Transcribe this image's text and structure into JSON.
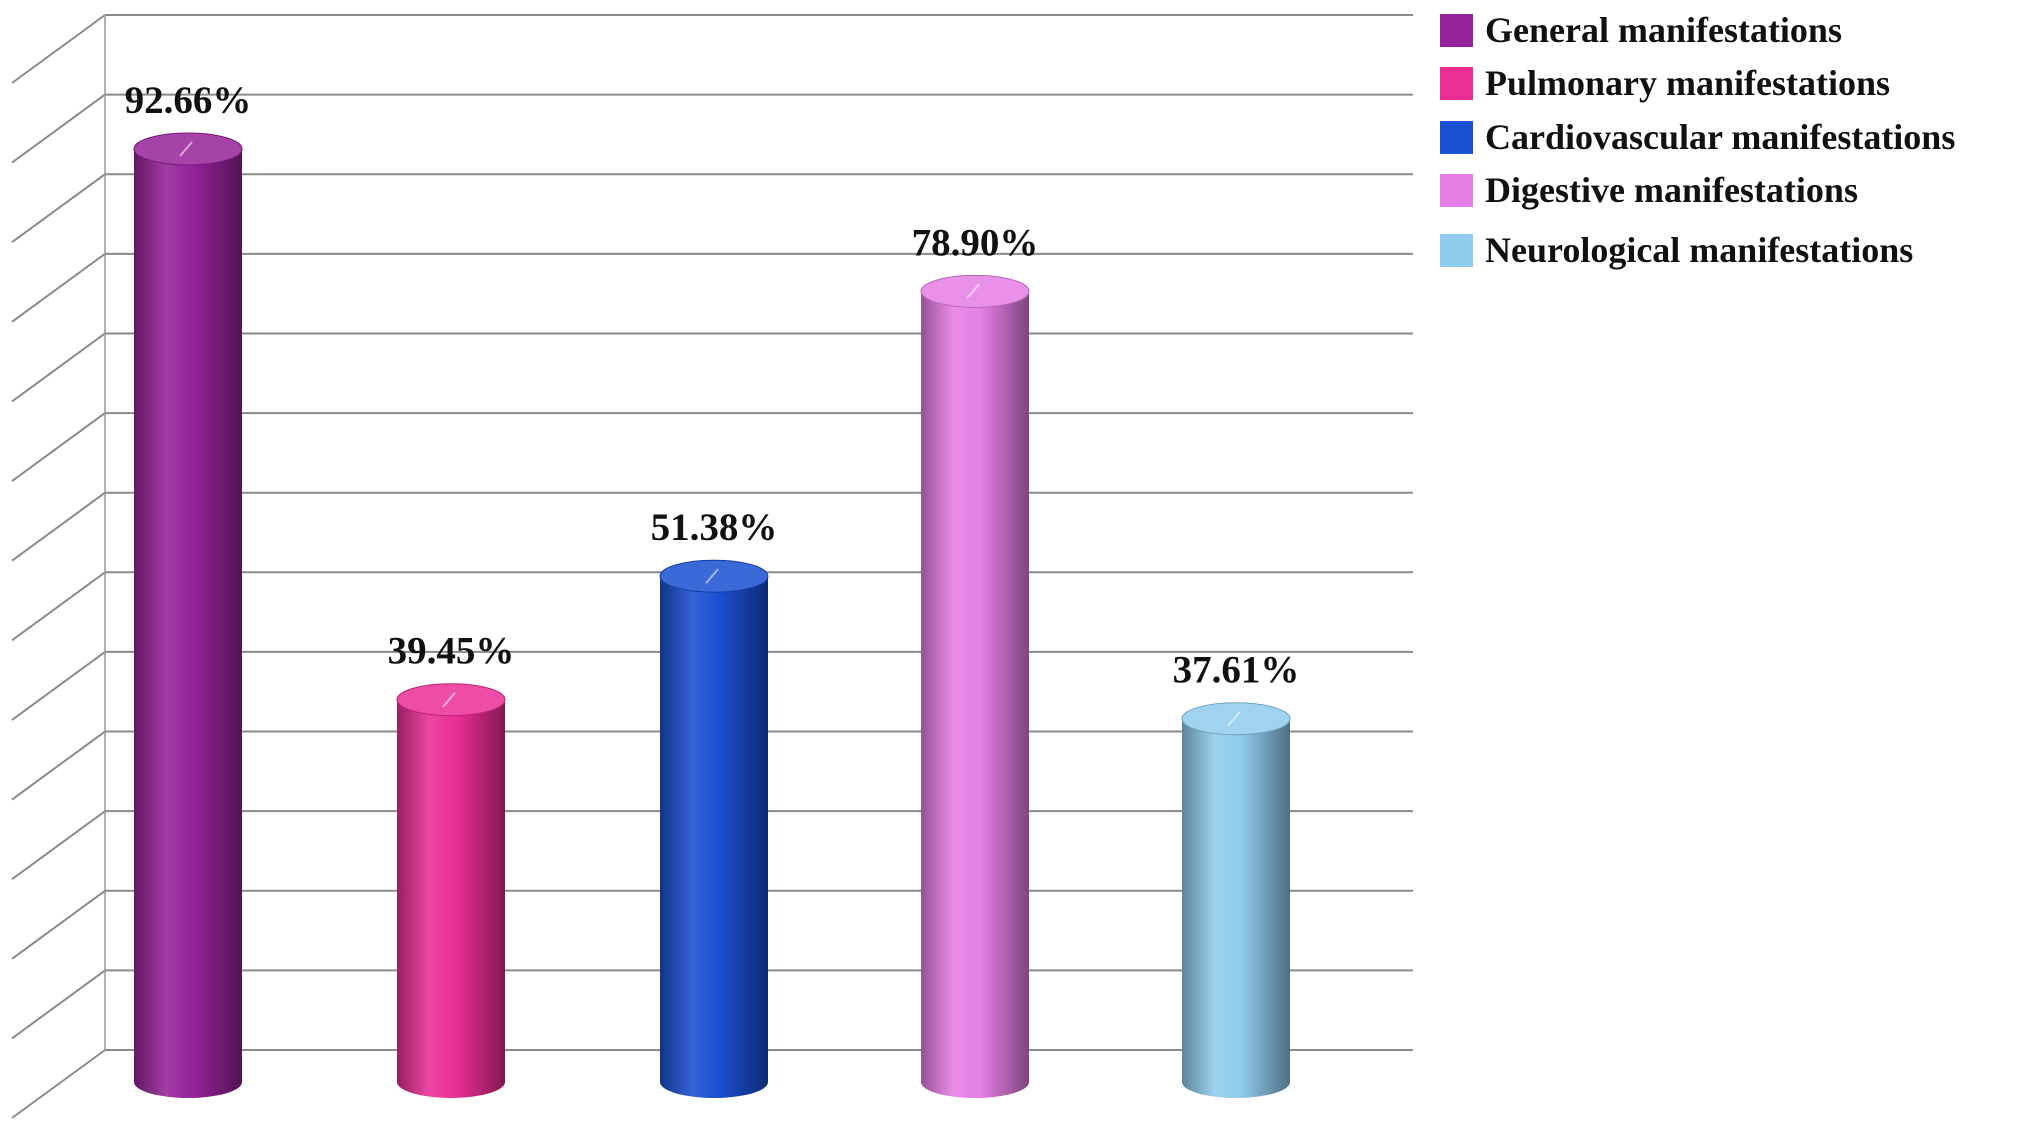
{
  "chart_data": {
    "type": "bar",
    "style": "3d-cylinder",
    "categories": [
      "General manifestations",
      "Pulmonary manifestations",
      "Cardiovascular manifestations",
      "Digestive manifestations",
      "Neurological manifestations"
    ],
    "values": [
      92.66,
      39.45,
      51.38,
      78.9,
      37.61
    ],
    "data_labels": [
      "92.66%",
      "39.45%",
      "51.38%",
      "78.90%",
      "37.61%"
    ],
    "colors": [
      "#952299",
      "#ea2e95",
      "#1a4fd1",
      "#e57ee5",
      "#8fcbec"
    ],
    "ylim": [
      0,
      100
    ],
    "grid": true,
    "legend": {
      "position": "top-right",
      "entries": [
        "General manifestations",
        "Pulmonary manifestations",
        "Cardiovascular manifestations",
        "Digestive manifestations",
        "Neurological manifestations"
      ]
    }
  }
}
